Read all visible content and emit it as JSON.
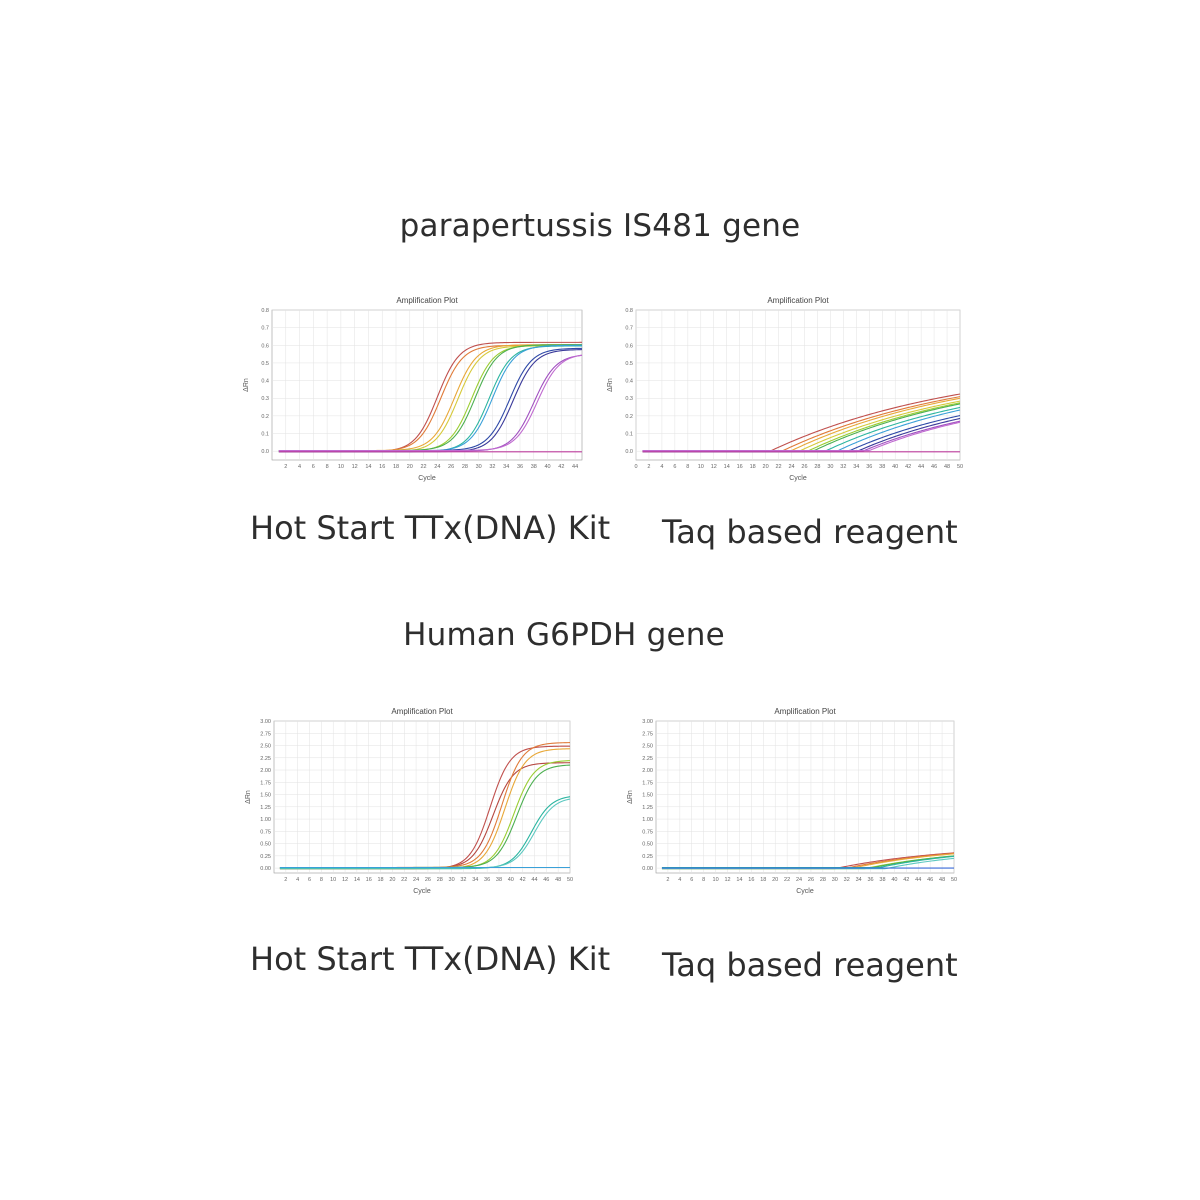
{
  "sections": [
    {
      "title": "parapertussis IS481 gene"
    },
    {
      "title": "Human G6PDH gene"
    }
  ],
  "captions": {
    "hot_start": "Hot Start TTx(DNA) Kit",
    "taq": "Taq based reagent"
  },
  "chart_data": [
    {
      "id": "p1",
      "type": "line",
      "title": "Amplification Plot",
      "xlabel": "Cycle",
      "ylabel": "ΔRn",
      "xlim": [
        0,
        45
      ],
      "ylim": [
        -0.05,
        0.8
      ],
      "xticks": [
        2,
        4,
        6,
        8,
        10,
        12,
        14,
        16,
        18,
        20,
        22,
        24,
        26,
        28,
        30,
        32,
        34,
        36,
        38,
        40,
        42,
        44
      ],
      "yticks": [
        0.0,
        0.1,
        0.2,
        0.3,
        0.4,
        0.5,
        0.6,
        0.7,
        0.8
      ],
      "ytick_labels": [
        "0.0",
        "0.1",
        "0.2",
        "0.3",
        "0.4",
        "0.5",
        "0.6",
        "0.7",
        "0.8"
      ],
      "grid": true,
      "series_model": "sigmoid",
      "series": [
        {
          "color": "#c0504d",
          "ct": 24.0,
          "plateau": 0.62,
          "slope": 1.6
        },
        {
          "color": "#e07b39",
          "ct": 24.5,
          "plateau": 0.6,
          "slope": 1.6
        },
        {
          "color": "#e8a838",
          "ct": 26.5,
          "plateau": 0.6,
          "slope": 1.6
        },
        {
          "color": "#d6c93a",
          "ct": 27.0,
          "plateau": 0.6,
          "slope": 1.6
        },
        {
          "color": "#9acd32",
          "ct": 29.0,
          "plateau": 0.6,
          "slope": 1.6
        },
        {
          "color": "#4caf50",
          "ct": 29.5,
          "plateau": 0.6,
          "slope": 1.6
        },
        {
          "color": "#2bb5a0",
          "ct": 31.5,
          "plateau": 0.6,
          "slope": 1.6
        },
        {
          "color": "#3aa0d8",
          "ct": 32.0,
          "plateau": 0.6,
          "slope": 1.6
        },
        {
          "color": "#2f4aa8",
          "ct": 34.5,
          "plateau": 0.58,
          "slope": 1.6
        },
        {
          "color": "#3a3a9a",
          "ct": 35.0,
          "plateau": 0.58,
          "slope": 1.6
        },
        {
          "color": "#a050c0",
          "ct": 38.0,
          "plateau": 0.55,
          "slope": 1.6
        },
        {
          "color": "#c06ad0",
          "ct": 38.5,
          "plateau": 0.55,
          "slope": 1.6
        },
        {
          "color": "#c040a0",
          "ct": 99,
          "plateau": 0.0,
          "slope": 1.6
        }
      ]
    },
    {
      "id": "p2",
      "type": "line",
      "title": "Amplification Plot",
      "xlabel": "Cycle",
      "ylabel": "ΔRn",
      "xlim": [
        0,
        50
      ],
      "ylim": [
        -0.05,
        0.8
      ],
      "xticks": [
        0,
        2,
        4,
        6,
        8,
        10,
        12,
        14,
        16,
        18,
        20,
        22,
        24,
        26,
        28,
        30,
        32,
        34,
        36,
        38,
        40,
        42,
        44,
        46,
        48,
        50
      ],
      "yticks": [
        0.0,
        0.1,
        0.2,
        0.3,
        0.4,
        0.5,
        0.6,
        0.7,
        0.8
      ],
      "ytick_labels": [
        "0.0",
        "0.1",
        "0.2",
        "0.3",
        "0.4",
        "0.5",
        "0.6",
        "0.7",
        "0.8"
      ],
      "grid": true,
      "series_model": "linear",
      "series": [
        {
          "color": "#c0504d",
          "start": 20.5,
          "rise": 0.0175,
          "cap": 0.52
        },
        {
          "color": "#e07b39",
          "start": 22.5,
          "rise": 0.0175,
          "cap": 0.5
        },
        {
          "color": "#e8a838",
          "start": 24.0,
          "rise": 0.0175,
          "cap": 0.49
        },
        {
          "color": "#d6c93a",
          "start": 25.0,
          "rise": 0.0175,
          "cap": 0.48
        },
        {
          "color": "#9acd32",
          "start": 26.5,
          "rise": 0.0175,
          "cap": 0.47
        },
        {
          "color": "#4caf50",
          "start": 27.5,
          "rise": 0.0175,
          "cap": 0.46
        },
        {
          "color": "#2bb5a0",
          "start": 29.0,
          "rise": 0.0175,
          "cap": 0.45
        },
        {
          "color": "#3aa0d8",
          "start": 31.0,
          "rise": 0.0175,
          "cap": 0.44
        },
        {
          "color": "#2f4aa8",
          "start": 33.0,
          "rise": 0.0165,
          "cap": 0.38
        },
        {
          "color": "#3a3a9a",
          "start": 34.0,
          "rise": 0.0165,
          "cap": 0.37
        },
        {
          "color": "#a050c0",
          "start": 35.0,
          "rise": 0.0155,
          "cap": 0.35
        },
        {
          "color": "#c06ad0",
          "start": 36.0,
          "rise": 0.0155,
          "cap": 0.34
        },
        {
          "color": "#c040a0",
          "start": 99,
          "rise": 0.0,
          "cap": 0.0
        }
      ]
    },
    {
      "id": "p3",
      "type": "line",
      "title": "Amplification Plot",
      "xlabel": "Cycle",
      "ylabel": "ΔRn",
      "xlim": [
        0,
        50
      ],
      "ylim": [
        -0.1,
        3.0
      ],
      "xticks": [
        2,
        4,
        6,
        8,
        10,
        12,
        14,
        16,
        18,
        20,
        22,
        24,
        26,
        28,
        30,
        32,
        34,
        36,
        38,
        40,
        42,
        44,
        46,
        48,
        50
      ],
      "yticks": [
        0,
        0.25,
        0.5,
        0.75,
        1.0,
        1.25,
        1.5,
        1.75,
        2.0,
        2.25,
        2.5,
        2.75,
        3.0
      ],
      "ytick_labels": [
        "0.00",
        "0.25",
        "0.50",
        "0.75",
        "1.00",
        "1.25",
        "1.50",
        "1.75",
        "2.00",
        "2.25",
        "2.50",
        "2.75",
        "3.00"
      ],
      "grid": true,
      "series_model": "sigmoid",
      "series": [
        {
          "color": "#c0504d",
          "ct": 36.5,
          "plateau": 2.5,
          "slope": 1.7
        },
        {
          "color": "#b5473f",
          "ct": 37.0,
          "plateau": 2.15,
          "slope": 1.7
        },
        {
          "color": "#e07b39",
          "ct": 38.5,
          "plateau": 2.55,
          "slope": 1.7
        },
        {
          "color": "#e8a838",
          "ct": 39.0,
          "plateau": 2.45,
          "slope": 1.7
        },
        {
          "color": "#9acd32",
          "ct": 40.5,
          "plateau": 2.2,
          "slope": 1.7
        },
        {
          "color": "#4caf50",
          "ct": 41.0,
          "plateau": 2.1,
          "slope": 1.7
        },
        {
          "color": "#2bb5a0",
          "ct": 43.5,
          "plateau": 1.5,
          "slope": 1.7
        },
        {
          "color": "#5cc8c0",
          "ct": 44.0,
          "plateau": 1.45,
          "slope": 1.7
        },
        {
          "color": "#3aa0d8",
          "ct": 99,
          "plateau": 0.0,
          "slope": 1.7
        }
      ]
    },
    {
      "id": "p4",
      "type": "line",
      "title": "Amplification Plot",
      "xlabel": "Cycle",
      "ylabel": "ΔRn",
      "xlim": [
        0,
        50
      ],
      "ylim": [
        -0.1,
        3.0
      ],
      "xticks": [
        2,
        4,
        6,
        8,
        10,
        12,
        14,
        16,
        18,
        20,
        22,
        24,
        26,
        28,
        30,
        32,
        34,
        36,
        38,
        40,
        42,
        44,
        46,
        48,
        50
      ],
      "yticks": [
        0,
        0.25,
        0.5,
        0.75,
        1.0,
        1.25,
        1.5,
        1.75,
        2.0,
        2.25,
        2.5,
        2.75,
        3.0
      ],
      "ytick_labels": [
        "0.00",
        "0.25",
        "0.50",
        "0.75",
        "1.00",
        "1.25",
        "1.50",
        "1.75",
        "2.00",
        "2.25",
        "2.50",
        "2.75",
        "3.00"
      ],
      "grid": true,
      "series_model": "linear",
      "series": [
        {
          "color": "#c0504d",
          "start": 30.0,
          "rise": 0.026,
          "cap": 0.5
        },
        {
          "color": "#e07b39",
          "start": 32.0,
          "rise": 0.026,
          "cap": 0.48
        },
        {
          "color": "#e8a838",
          "start": 33.5,
          "rise": 0.026,
          "cap": 0.46
        },
        {
          "color": "#9acd32",
          "start": 35.0,
          "rise": 0.026,
          "cap": 0.45
        },
        {
          "color": "#4caf50",
          "start": 36.0,
          "rise": 0.026,
          "cap": 0.44
        },
        {
          "color": "#2bb5a0",
          "start": 37.5,
          "rise": 0.026,
          "cap": 0.42
        },
        {
          "color": "#5cc8c0",
          "start": 38.5,
          "rise": 0.026,
          "cap": 0.4
        },
        {
          "color": "#3a6ad8",
          "start": 99,
          "rise": 0.0,
          "cap": 0.0
        }
      ]
    }
  ]
}
